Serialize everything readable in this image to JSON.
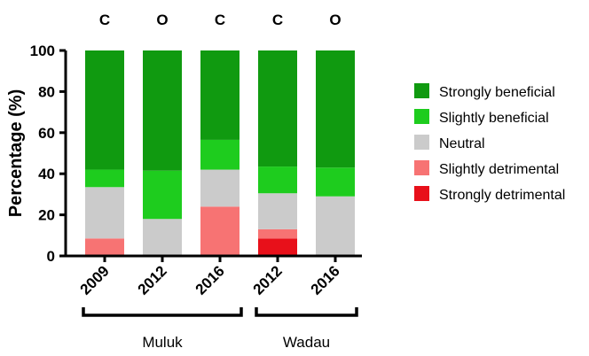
{
  "chart_data": {
    "type": "bar",
    "stacked": true,
    "categories": [
      "2009",
      "2012",
      "2016",
      "2012",
      "2016"
    ],
    "top_labels": [
      "C",
      "O",
      "C",
      "C",
      "O"
    ],
    "groups": [
      {
        "label": "Muluk",
        "categories": [
          0,
          1,
          2
        ]
      },
      {
        "label": "Wadau",
        "categories": [
          3,
          4
        ]
      }
    ],
    "series": [
      {
        "name": "Strongly detrimental",
        "color": "#e8101a",
        "values": [
          0,
          0,
          0,
          8.5,
          0
        ]
      },
      {
        "name": "Slightly detrimental",
        "color": "#f77373",
        "values": [
          8.5,
          0,
          24,
          4.5,
          0
        ]
      },
      {
        "name": "Neutral",
        "color": "#cbcbcb",
        "values": [
          25,
          18,
          18,
          17.5,
          29
        ]
      },
      {
        "name": "Slightly beneficial",
        "color": "#1ecc1e",
        "values": [
          8.5,
          23.5,
          14.5,
          13,
          14
        ]
      },
      {
        "name": "Strongly beneficial",
        "color": "#109a10",
        "values": [
          58,
          58.5,
          43.5,
          56.5,
          57
        ]
      }
    ],
    "ylabel": "Percentage (%)",
    "ylim": [
      0,
      100
    ],
    "yticks": [
      "0",
      "20",
      "40",
      "60",
      "80",
      "100"
    ],
    "grid": false,
    "legend_position": "right"
  }
}
